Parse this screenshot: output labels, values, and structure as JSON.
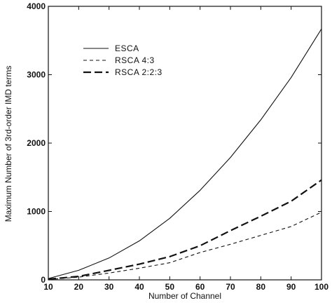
{
  "chart_data": {
    "type": "line",
    "xlabel": "Number of Channel",
    "ylabel": "Maximum Number of 3rd-order IMD terms",
    "xlim": [
      10,
      100
    ],
    "ylim": [
      0,
      4000
    ],
    "x_ticks": [
      "10",
      "20",
      "30",
      "40",
      "50",
      "60",
      "70",
      "80",
      "90",
      "100"
    ],
    "y_ticks": [
      "0",
      "1000",
      "2000",
      "3000",
      "4000"
    ],
    "grid": false,
    "legend_position": "upper-left",
    "x": [
      10,
      20,
      30,
      40,
      50,
      60,
      70,
      80,
      90,
      100
    ],
    "series": [
      {
        "name": "ESCA",
        "style": "solid",
        "values": [
          20,
          140,
          320,
          570,
          900,
          1310,
          1790,
          2340,
          2960,
          3670
        ]
      },
      {
        "name": "RSCA 4:3",
        "style": "short-dash",
        "values": [
          5,
          40,
          100,
          170,
          250,
          400,
          520,
          650,
          780,
          990
        ]
      },
      {
        "name": "RSCA 2:2:3",
        "style": "long-dash",
        "values": [
          10,
          50,
          140,
          230,
          340,
          500,
          720,
          930,
          1150,
          1460
        ]
      }
    ]
  }
}
